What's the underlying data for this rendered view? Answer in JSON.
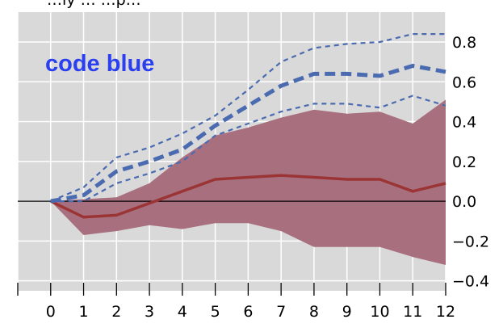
{
  "chart_data": {
    "type": "line",
    "title_fragment": "…ly … …p…",
    "annotation": {
      "text": "code blue",
      "color": "#2a3ff0"
    },
    "x": [
      0,
      1,
      2,
      3,
      4,
      5,
      6,
      7,
      8,
      9,
      10,
      11,
      12
    ],
    "xlim": [
      -1,
      12
    ],
    "ylim": [
      -0.45,
      0.95
    ],
    "x_ticks": [
      "0",
      "1",
      "2",
      "3",
      "4",
      "5",
      "6",
      "7",
      "8",
      "9",
      "10",
      "11",
      "12"
    ],
    "y_ticks": [
      {
        "value": 0.8,
        "label": "0.8"
      },
      {
        "value": 0.6,
        "label": "0.6"
      },
      {
        "value": 0.4,
        "label": "0.4"
      },
      {
        "value": 0.2,
        "label": "0.2"
      },
      {
        "value": 0.0,
        "label": "0.0"
      },
      {
        "value": -0.2,
        "label": "−0.2"
      },
      {
        "value": -0.4,
        "label": "−0.4"
      }
    ],
    "y_axis_side": "right",
    "grid": true,
    "background_color": "#d9d9d9",
    "grid_color": "#ffffff",
    "zero_line": true,
    "band": {
      "color": "#a8707f",
      "upper": [
        0.0,
        0.01,
        0.02,
        0.09,
        0.22,
        0.33,
        0.37,
        0.42,
        0.46,
        0.44,
        0.45,
        0.39,
        0.51
      ],
      "lower": [
        0.0,
        -0.17,
        -0.15,
        -0.12,
        -0.14,
        -0.11,
        -0.11,
        -0.15,
        -0.23,
        -0.23,
        -0.23,
        -0.28,
        -0.32
      ]
    },
    "series": [
      {
        "style": "solid",
        "color": "#9b3535",
        "values": [
          0.0,
          -0.08,
          -0.07,
          -0.01,
          0.05,
          0.11,
          0.12,
          0.13,
          0.12,
          0.11,
          0.11,
          0.05,
          0.09
        ]
      },
      {
        "style": "thick-dashed",
        "color": "#4a6bb0",
        "values": [
          0.0,
          0.03,
          0.15,
          0.2,
          0.26,
          0.38,
          0.48,
          0.58,
          0.64,
          0.64,
          0.63,
          0.68,
          0.65
        ]
      },
      {
        "style": "thin-dashed",
        "color": "#4a6bb0",
        "values": [
          0.0,
          0.07,
          0.22,
          0.27,
          0.34,
          0.43,
          0.56,
          0.7,
          0.77,
          0.79,
          0.8,
          0.84,
          0.84
        ]
      },
      {
        "style": "thin-dashed",
        "color": "#4a6bb0",
        "values": [
          0.0,
          0.0,
          0.09,
          0.14,
          0.2,
          0.33,
          0.39,
          0.45,
          0.49,
          0.49,
          0.47,
          0.53,
          0.48
        ]
      }
    ]
  }
}
